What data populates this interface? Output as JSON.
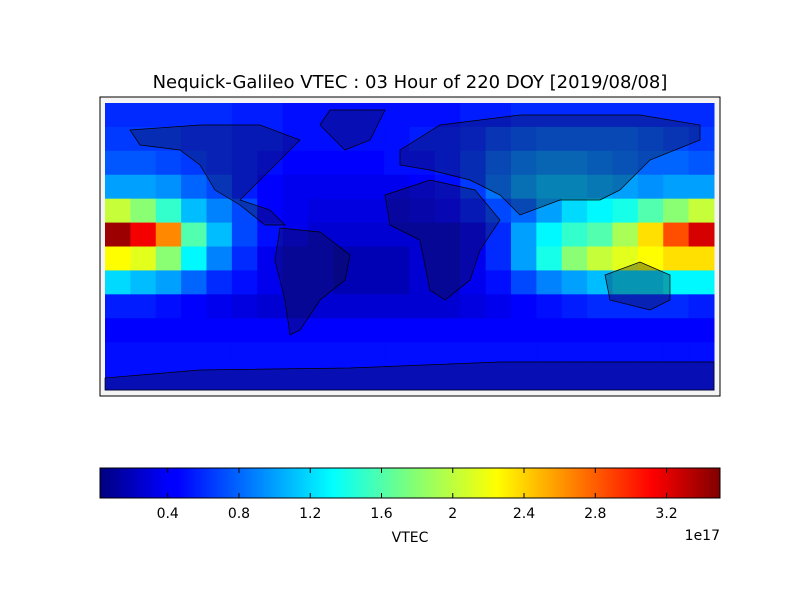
{
  "chart_data": {
    "type": "heatmap",
    "title": "Nequick-Galileo VTEC : 03 Hour of 220 DOY [2019/08/08]",
    "colormap": "jet",
    "values": [
      [
        0.6,
        0.6,
        0.6,
        0.6,
        0.6,
        0.55,
        0.55,
        0.5,
        0.5,
        0.5,
        0.5,
        0.5,
        0.5,
        0.5,
        0.55,
        0.55,
        0.6,
        0.6,
        0.6,
        0.6,
        0.6,
        0.6,
        0.6,
        0.6
      ],
      [
        0.65,
        0.65,
        0.65,
        0.6,
        0.6,
        0.55,
        0.55,
        0.5,
        0.5,
        0.5,
        0.5,
        0.5,
        0.55,
        0.55,
        0.6,
        0.7,
        0.75,
        0.8,
        0.8,
        0.8,
        0.8,
        0.75,
        0.7,
        0.65
      ],
      [
        0.75,
        0.75,
        0.7,
        0.65,
        0.6,
        0.55,
        0.5,
        0.45,
        0.45,
        0.45,
        0.45,
        0.5,
        0.5,
        0.55,
        0.65,
        0.8,
        0.9,
        0.95,
        0.95,
        0.9,
        0.85,
        0.8,
        0.8,
        0.75
      ],
      [
        1.0,
        1.0,
        0.95,
        0.8,
        0.7,
        0.55,
        0.45,
        0.4,
        0.4,
        0.4,
        0.4,
        0.4,
        0.45,
        0.5,
        0.65,
        0.85,
        1.0,
        1.1,
        1.1,
        1.05,
        1.0,
        0.95,
        1.0,
        1.0
      ],
      [
        2.0,
        1.8,
        1.5,
        1.1,
        0.9,
        0.7,
        0.45,
        0.4,
        0.35,
        0.35,
        0.35,
        0.35,
        0.4,
        0.45,
        0.55,
        0.7,
        0.8,
        1.0,
        1.2,
        1.3,
        1.4,
        1.6,
        1.8,
        2.0
      ],
      [
        3.4,
        3.1,
        2.6,
        1.6,
        1.1,
        0.7,
        0.5,
        0.4,
        0.3,
        0.3,
        0.3,
        0.3,
        0.3,
        0.3,
        0.4,
        0.6,
        1.0,
        1.3,
        1.5,
        1.6,
        1.9,
        2.3,
        2.8,
        3.2
      ],
      [
        2.2,
        2.1,
        1.8,
        1.3,
        0.9,
        0.6,
        0.4,
        0.3,
        0.3,
        0.2,
        0.2,
        0.2,
        0.3,
        0.3,
        0.4,
        0.6,
        1.0,
        1.4,
        1.8,
        2.0,
        2.1,
        2.2,
        2.3,
        2.3
      ],
      [
        1.2,
        1.1,
        1.0,
        0.8,
        0.6,
        0.5,
        0.4,
        0.3,
        0.3,
        0.2,
        0.2,
        0.2,
        0.3,
        0.3,
        0.4,
        0.5,
        0.7,
        0.9,
        1.0,
        1.1,
        1.2,
        1.2,
        1.3,
        1.3
      ],
      [
        0.55,
        0.55,
        0.5,
        0.45,
        0.4,
        0.35,
        0.3,
        0.3,
        0.3,
        0.3,
        0.3,
        0.3,
        0.3,
        0.3,
        0.35,
        0.4,
        0.45,
        0.5,
        0.55,
        0.6,
        0.6,
        0.6,
        0.6,
        0.55
      ],
      [
        0.45,
        0.45,
        0.45,
        0.45,
        0.45,
        0.45,
        0.45,
        0.45,
        0.45,
        0.45,
        0.45,
        0.45,
        0.45,
        0.45,
        0.45,
        0.45,
        0.45,
        0.45,
        0.45,
        0.45,
        0.45,
        0.45,
        0.45,
        0.45
      ],
      [
        0.5,
        0.5,
        0.5,
        0.5,
        0.5,
        0.5,
        0.5,
        0.5,
        0.5,
        0.5,
        0.5,
        0.5,
        0.5,
        0.5,
        0.5,
        0.5,
        0.5,
        0.5,
        0.5,
        0.5,
        0.5,
        0.5,
        0.5,
        0.5
      ],
      [
        0.5,
        0.5,
        0.5,
        0.5,
        0.5,
        0.5,
        0.5,
        0.5,
        0.5,
        0.5,
        0.5,
        0.5,
        0.5,
        0.5,
        0.5,
        0.5,
        0.5,
        0.5,
        0.5,
        0.5,
        0.5,
        0.5,
        0.5,
        0.5
      ]
    ],
    "colorbar": {
      "clim": [
        0.02,
        3.5
      ],
      "ticks": [
        0.4,
        0.8,
        1.2,
        1.6,
        2.0,
        2.4,
        2.8,
        3.2
      ],
      "label": "VTEC",
      "offset_text": "1e17"
    }
  }
}
